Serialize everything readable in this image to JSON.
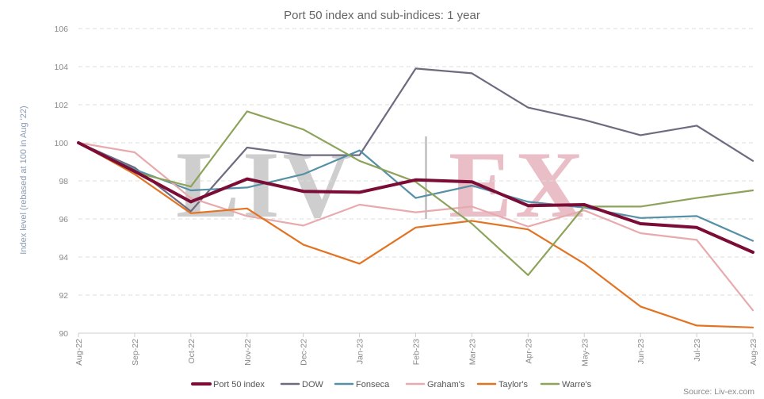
{
  "chart_data": {
    "type": "line",
    "title": "Port 50 index and sub-indices: 1 year",
    "ylabel": "Index level (rebased at 100 in Aug '22)",
    "xlabel": "",
    "ylim": [
      90,
      106
    ],
    "yticks": [
      90,
      92,
      94,
      96,
      98,
      100,
      102,
      104,
      106
    ],
    "x": [
      "Aug-22",
      "Sep-22",
      "Oct-22",
      "Nov-22",
      "Dec-22",
      "Jan-23",
      "Feb-23",
      "Mar-23",
      "Apr-23",
      "May-23",
      "Jun-23",
      "Jul-23",
      "Aug-23"
    ],
    "grid": true,
    "legend_position": "bottom",
    "series": [
      {
        "name": "Port 50 index",
        "color": "#7b0c36",
        "values": [
          100,
          98.5,
          96.9,
          98.1,
          97.45,
          97.4,
          98.05,
          97.95,
          96.7,
          96.75,
          95.75,
          95.55,
          94.25
        ]
      },
      {
        "name": "DOW",
        "color": "#6e6a80",
        "values": [
          100,
          98.7,
          96.4,
          99.75,
          99.35,
          99.35,
          103.9,
          103.65,
          101.85,
          101.2,
          100.4,
          100.9,
          99.05
        ]
      },
      {
        "name": "Fonseca",
        "color": "#5590a6",
        "values": [
          100,
          98.6,
          97.5,
          97.65,
          98.35,
          99.6,
          97.1,
          97.75,
          96.9,
          96.6,
          96.05,
          96.15,
          94.85
        ]
      },
      {
        "name": "Graham's",
        "color": "#e7aaad",
        "values": [
          100,
          99.5,
          97.1,
          96.15,
          95.65,
          96.75,
          96.35,
          96.65,
          95.6,
          96.45,
          95.25,
          94.9,
          91.2
        ]
      },
      {
        "name": "Taylor's",
        "color": "#e27322",
        "values": [
          100,
          98.35,
          96.3,
          96.55,
          94.65,
          93.65,
          95.55,
          95.9,
          95.45,
          93.65,
          91.4,
          90.4,
          90.3
        ]
      },
      {
        "name": "Warre's",
        "color": "#8da35a",
        "values": [
          100,
          98.45,
          97.7,
          101.65,
          100.7,
          99.05,
          97.95,
          95.75,
          93.05,
          96.65,
          96.65,
          97.1,
          97.5
        ]
      }
    ],
    "source": "Source: Liv-ex.com"
  },
  "watermark": {
    "text_left": "LIV",
    "text_right": "EX",
    "color_left": "#c9c9c9",
    "color_right": "#e7b8c2"
  }
}
